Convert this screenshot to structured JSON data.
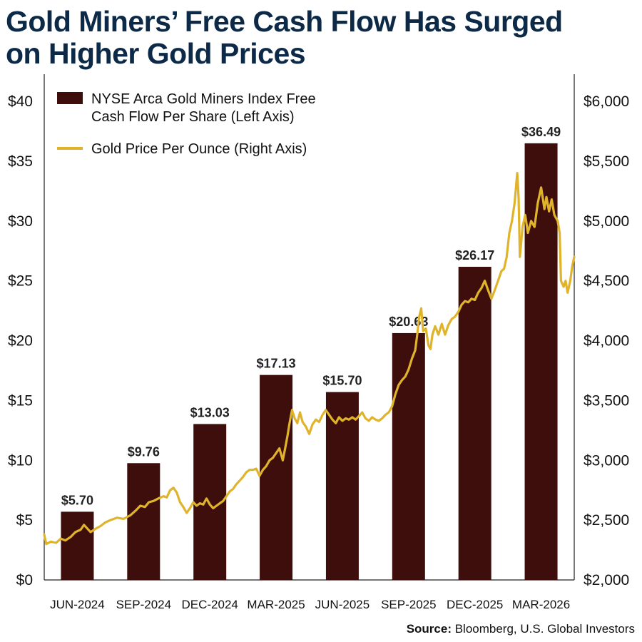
{
  "header": {
    "title_line1": "Gold Miners’ Free Cash Flow Has Surged",
    "title_line2": "on Higher Gold Prices"
  },
  "source": {
    "label": "Source:",
    "text": " Bloomberg, U.S. Global Investors"
  },
  "chart_data": {
    "type": "bar",
    "title": "Gold Miners’ Free Cash Flow Has Surged on Higher Gold Prices",
    "categories": [
      "JUN-2024",
      "SEP-2024",
      "DEC-2024",
      "MAR-2025",
      "JUN-2025",
      "SEP-2025",
      "DEC-2025",
      "MAR-2026"
    ],
    "left_axis": {
      "ylim": [
        0,
        40
      ],
      "ticks": [
        "$0",
        "$5",
        "$10",
        "$15",
        "$20",
        "$25",
        "$30",
        "$35",
        "$40"
      ]
    },
    "right_axis": {
      "ylim": [
        2000,
        6000
      ],
      "ticks": [
        "$2,000",
        "$2,500",
        "$3,000",
        "$3,500",
        "$4,000",
        "$4,500",
        "$5,000",
        "$5,500",
        "$6,000"
      ]
    },
    "legend_position": "top-left",
    "series": [
      {
        "name": "NYSE Arca Gold Miners Index Free Cash Flow Per Share (Left Axis)",
        "legend_lines": [
          "NYSE Arca Gold Miners Index Free",
          "Cash Flow Per Share (Left Axis)"
        ],
        "type": "bar",
        "axis": "left",
        "color": "#3e0e0c",
        "values": [
          5.7,
          9.76,
          13.03,
          17.13,
          15.7,
          20.63,
          26.17,
          36.49
        ],
        "labels": [
          "$5.70",
          "$9.76",
          "$13.03",
          "$17.13",
          "$15.70",
          "$20.63",
          "$26.17",
          "$36.49"
        ]
      },
      {
        "name": "Gold Price Per Ounce (Right Axis)",
        "legend_lines": [
          "Gold Price Per Ounce (Right Axis)"
        ],
        "type": "line",
        "axis": "right",
        "color": "#dfb42a",
        "x_range": [
          0,
          8
        ],
        "points": [
          [
            0.0,
            2380
          ],
          [
            0.03,
            2300
          ],
          [
            0.1,
            2320
          ],
          [
            0.18,
            2310
          ],
          [
            0.25,
            2345
          ],
          [
            0.32,
            2330
          ],
          [
            0.4,
            2360
          ],
          [
            0.47,
            2400
          ],
          [
            0.55,
            2420
          ],
          [
            0.6,
            2460
          ],
          [
            0.65,
            2430
          ],
          [
            0.7,
            2400
          ],
          [
            0.78,
            2430
          ],
          [
            0.85,
            2450
          ],
          [
            0.92,
            2480
          ],
          [
            1.0,
            2500
          ],
          [
            1.1,
            2520
          ],
          [
            1.2,
            2510
          ],
          [
            1.3,
            2540
          ],
          [
            1.38,
            2580
          ],
          [
            1.45,
            2620
          ],
          [
            1.52,
            2610
          ],
          [
            1.58,
            2650
          ],
          [
            1.65,
            2660
          ],
          [
            1.72,
            2680
          ],
          [
            1.8,
            2700
          ],
          [
            1.85,
            2690
          ],
          [
            1.9,
            2750
          ],
          [
            1.95,
            2770
          ],
          [
            2.0,
            2730
          ],
          [
            2.05,
            2650
          ],
          [
            2.1,
            2610
          ],
          [
            2.15,
            2560
          ],
          [
            2.2,
            2600
          ],
          [
            2.25,
            2650
          ],
          [
            2.3,
            2620
          ],
          [
            2.35,
            2640
          ],
          [
            2.4,
            2630
          ],
          [
            2.45,
            2680
          ],
          [
            2.5,
            2630
          ],
          [
            2.55,
            2600
          ],
          [
            2.6,
            2620
          ],
          [
            2.65,
            2640
          ],
          [
            2.7,
            2660
          ],
          [
            2.75,
            2700
          ],
          [
            2.8,
            2740
          ],
          [
            2.85,
            2760
          ],
          [
            2.9,
            2800
          ],
          [
            2.95,
            2830
          ],
          [
            3.0,
            2860
          ],
          [
            3.05,
            2900
          ],
          [
            3.1,
            2920
          ],
          [
            3.15,
            2920
          ],
          [
            3.2,
            2930
          ],
          [
            3.25,
            2870
          ],
          [
            3.3,
            2920
          ],
          [
            3.35,
            2950
          ],
          [
            3.4,
            3000
          ],
          [
            3.45,
            3020
          ],
          [
            3.5,
            3060
          ],
          [
            3.55,
            3100
          ],
          [
            3.6,
            3000
          ],
          [
            3.63,
            3080
          ],
          [
            3.67,
            3200
          ],
          [
            3.7,
            3300
          ],
          [
            3.74,
            3420
          ],
          [
            3.78,
            3350
          ],
          [
            3.82,
            3310
          ],
          [
            3.86,
            3400
          ],
          [
            3.9,
            3320
          ],
          [
            3.95,
            3280
          ],
          [
            4.0,
            3220
          ],
          [
            4.05,
            3300
          ],
          [
            4.1,
            3340
          ],
          [
            4.15,
            3320
          ],
          [
            4.2,
            3380
          ],
          [
            4.25,
            3420
          ],
          [
            4.3,
            3380
          ],
          [
            4.35,
            3340
          ],
          [
            4.4,
            3310
          ],
          [
            4.45,
            3360
          ],
          [
            4.5,
            3330
          ],
          [
            4.55,
            3350
          ],
          [
            4.6,
            3340
          ],
          [
            4.65,
            3360
          ],
          [
            4.7,
            3340
          ],
          [
            4.75,
            3370
          ],
          [
            4.8,
            3400
          ],
          [
            4.85,
            3350
          ],
          [
            4.9,
            3330
          ],
          [
            4.95,
            3360
          ],
          [
            5.0,
            3340
          ],
          [
            5.05,
            3330
          ],
          [
            5.1,
            3350
          ],
          [
            5.15,
            3380
          ],
          [
            5.2,
            3400
          ],
          [
            5.25,
            3450
          ],
          [
            5.3,
            3550
          ],
          [
            5.35,
            3630
          ],
          [
            5.4,
            3670
          ],
          [
            5.45,
            3700
          ],
          [
            5.5,
            3760
          ],
          [
            5.55,
            3850
          ],
          [
            5.6,
            3920
          ],
          [
            5.63,
            4050
          ],
          [
            5.66,
            4200
          ],
          [
            5.69,
            4270
          ],
          [
            5.72,
            4080
          ],
          [
            5.76,
            4100
          ],
          [
            5.8,
            3960
          ],
          [
            5.83,
            3930
          ],
          [
            5.86,
            4050
          ],
          [
            5.9,
            4120
          ],
          [
            5.95,
            4050
          ],
          [
            6.0,
            4140
          ],
          [
            6.05,
            4050
          ],
          [
            6.1,
            4130
          ],
          [
            6.15,
            4180
          ],
          [
            6.2,
            4200
          ],
          [
            6.25,
            4240
          ],
          [
            6.3,
            4300
          ],
          [
            6.35,
            4330
          ],
          [
            6.4,
            4320
          ],
          [
            6.45,
            4350
          ],
          [
            6.5,
            4340
          ],
          [
            6.55,
            4400
          ],
          [
            6.6,
            4440
          ],
          [
            6.65,
            4500
          ],
          [
            6.7,
            4420
          ],
          [
            6.75,
            4350
          ],
          [
            6.8,
            4420
          ],
          [
            6.85,
            4500
          ],
          [
            6.9,
            4580
          ],
          [
            6.94,
            4600
          ],
          [
            6.98,
            4700
          ],
          [
            7.02,
            4900
          ],
          [
            7.06,
            5000
          ],
          [
            7.1,
            5150
          ],
          [
            7.14,
            5400
          ],
          [
            7.16,
            5200
          ],
          [
            7.18,
            4700
          ],
          [
            7.22,
            4950
          ],
          [
            7.26,
            5050
          ],
          [
            7.3,
            4900
          ],
          [
            7.35,
            5000
          ],
          [
            7.4,
            4950
          ],
          [
            7.45,
            5150
          ],
          [
            7.5,
            5280
          ],
          [
            7.55,
            5100
          ],
          [
            7.58,
            5200
          ],
          [
            7.62,
            5080
          ],
          [
            7.66,
            5180
          ],
          [
            7.7,
            5050
          ],
          [
            7.75,
            5000
          ],
          [
            7.78,
            4900
          ],
          [
            7.8,
            4500
          ],
          [
            7.84,
            4450
          ],
          [
            7.87,
            4500
          ],
          [
            7.9,
            4400
          ],
          [
            7.94,
            4500
          ],
          [
            7.97,
            4620
          ],
          [
            8.0,
            4700
          ]
        ]
      }
    ]
  }
}
